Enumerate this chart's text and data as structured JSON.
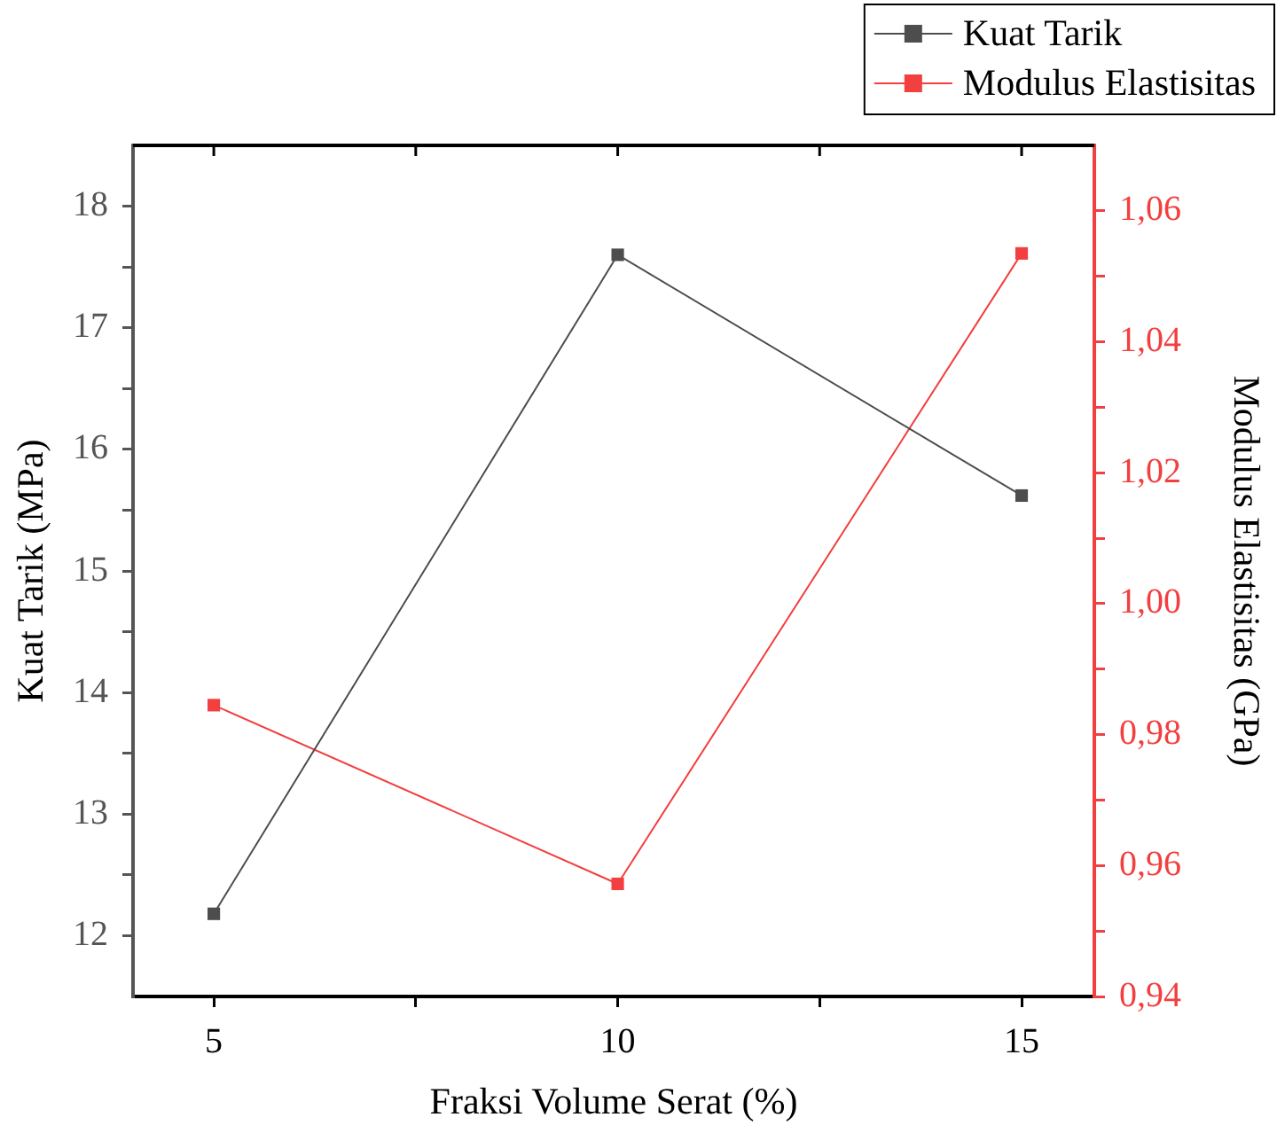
{
  "chart_data": {
    "type": "line",
    "xlabel": "Fraksi Volume Serat (%)",
    "ylabel": "Kuat Tarik (MPa)",
    "y2label": "Modulus Elastisitas (GPa)",
    "x": [
      5,
      10,
      15
    ],
    "series": [
      {
        "name": "Kuat Tarik",
        "color": "#4d4d4d",
        "values": [
          12.18,
          17.6,
          15.62
        ]
      },
      {
        "name": "Modulus Elastisitas",
        "color": "#f23f3f",
        "values": [
          0.9845,
          0.9572,
          1.0535
        ],
        "axis": "y2"
      }
    ],
    "xlim": [
      4,
      15.9
    ],
    "xticks": [
      5,
      {
        "value": 7.5,
        "label": null
      },
      10,
      {
        "value": 12.5,
        "label": null
      },
      15
    ],
    "ylim": [
      11.5,
      18.5
    ],
    "yticks": [
      12,
      {
        "value": 12.5,
        "label": null
      },
      13,
      {
        "value": 13.5,
        "label": null
      },
      14,
      {
        "value": 14.5,
        "label": null
      },
      15,
      {
        "value": 15.5,
        "label": null
      },
      16,
      {
        "value": 16.5,
        "label": null
      },
      17,
      {
        "value": 17.5,
        "label": null
      },
      18
    ],
    "y2lim": [
      0.94,
      1.07
    ],
    "y2ticks": [
      {
        "value": 0.94,
        "label": "0,94"
      },
      {
        "value": 0.95,
        "label": null
      },
      {
        "value": 0.96,
        "label": "0,96"
      },
      {
        "value": 0.97,
        "label": null
      },
      {
        "value": 0.98,
        "label": "0,98"
      },
      {
        "value": 0.99,
        "label": null
      },
      {
        "value": 1.0,
        "label": "1,00"
      },
      {
        "value": 1.01,
        "label": null
      },
      {
        "value": 1.02,
        "label": "1,02"
      },
      {
        "value": 1.03,
        "label": null
      },
      {
        "value": 1.04,
        "label": "1,04"
      },
      {
        "value": 1.05,
        "label": null
      },
      {
        "value": 1.06,
        "label": "1,06"
      }
    ],
    "marker": "square",
    "line_style": "solid",
    "grid": false,
    "legend": "top right"
  }
}
